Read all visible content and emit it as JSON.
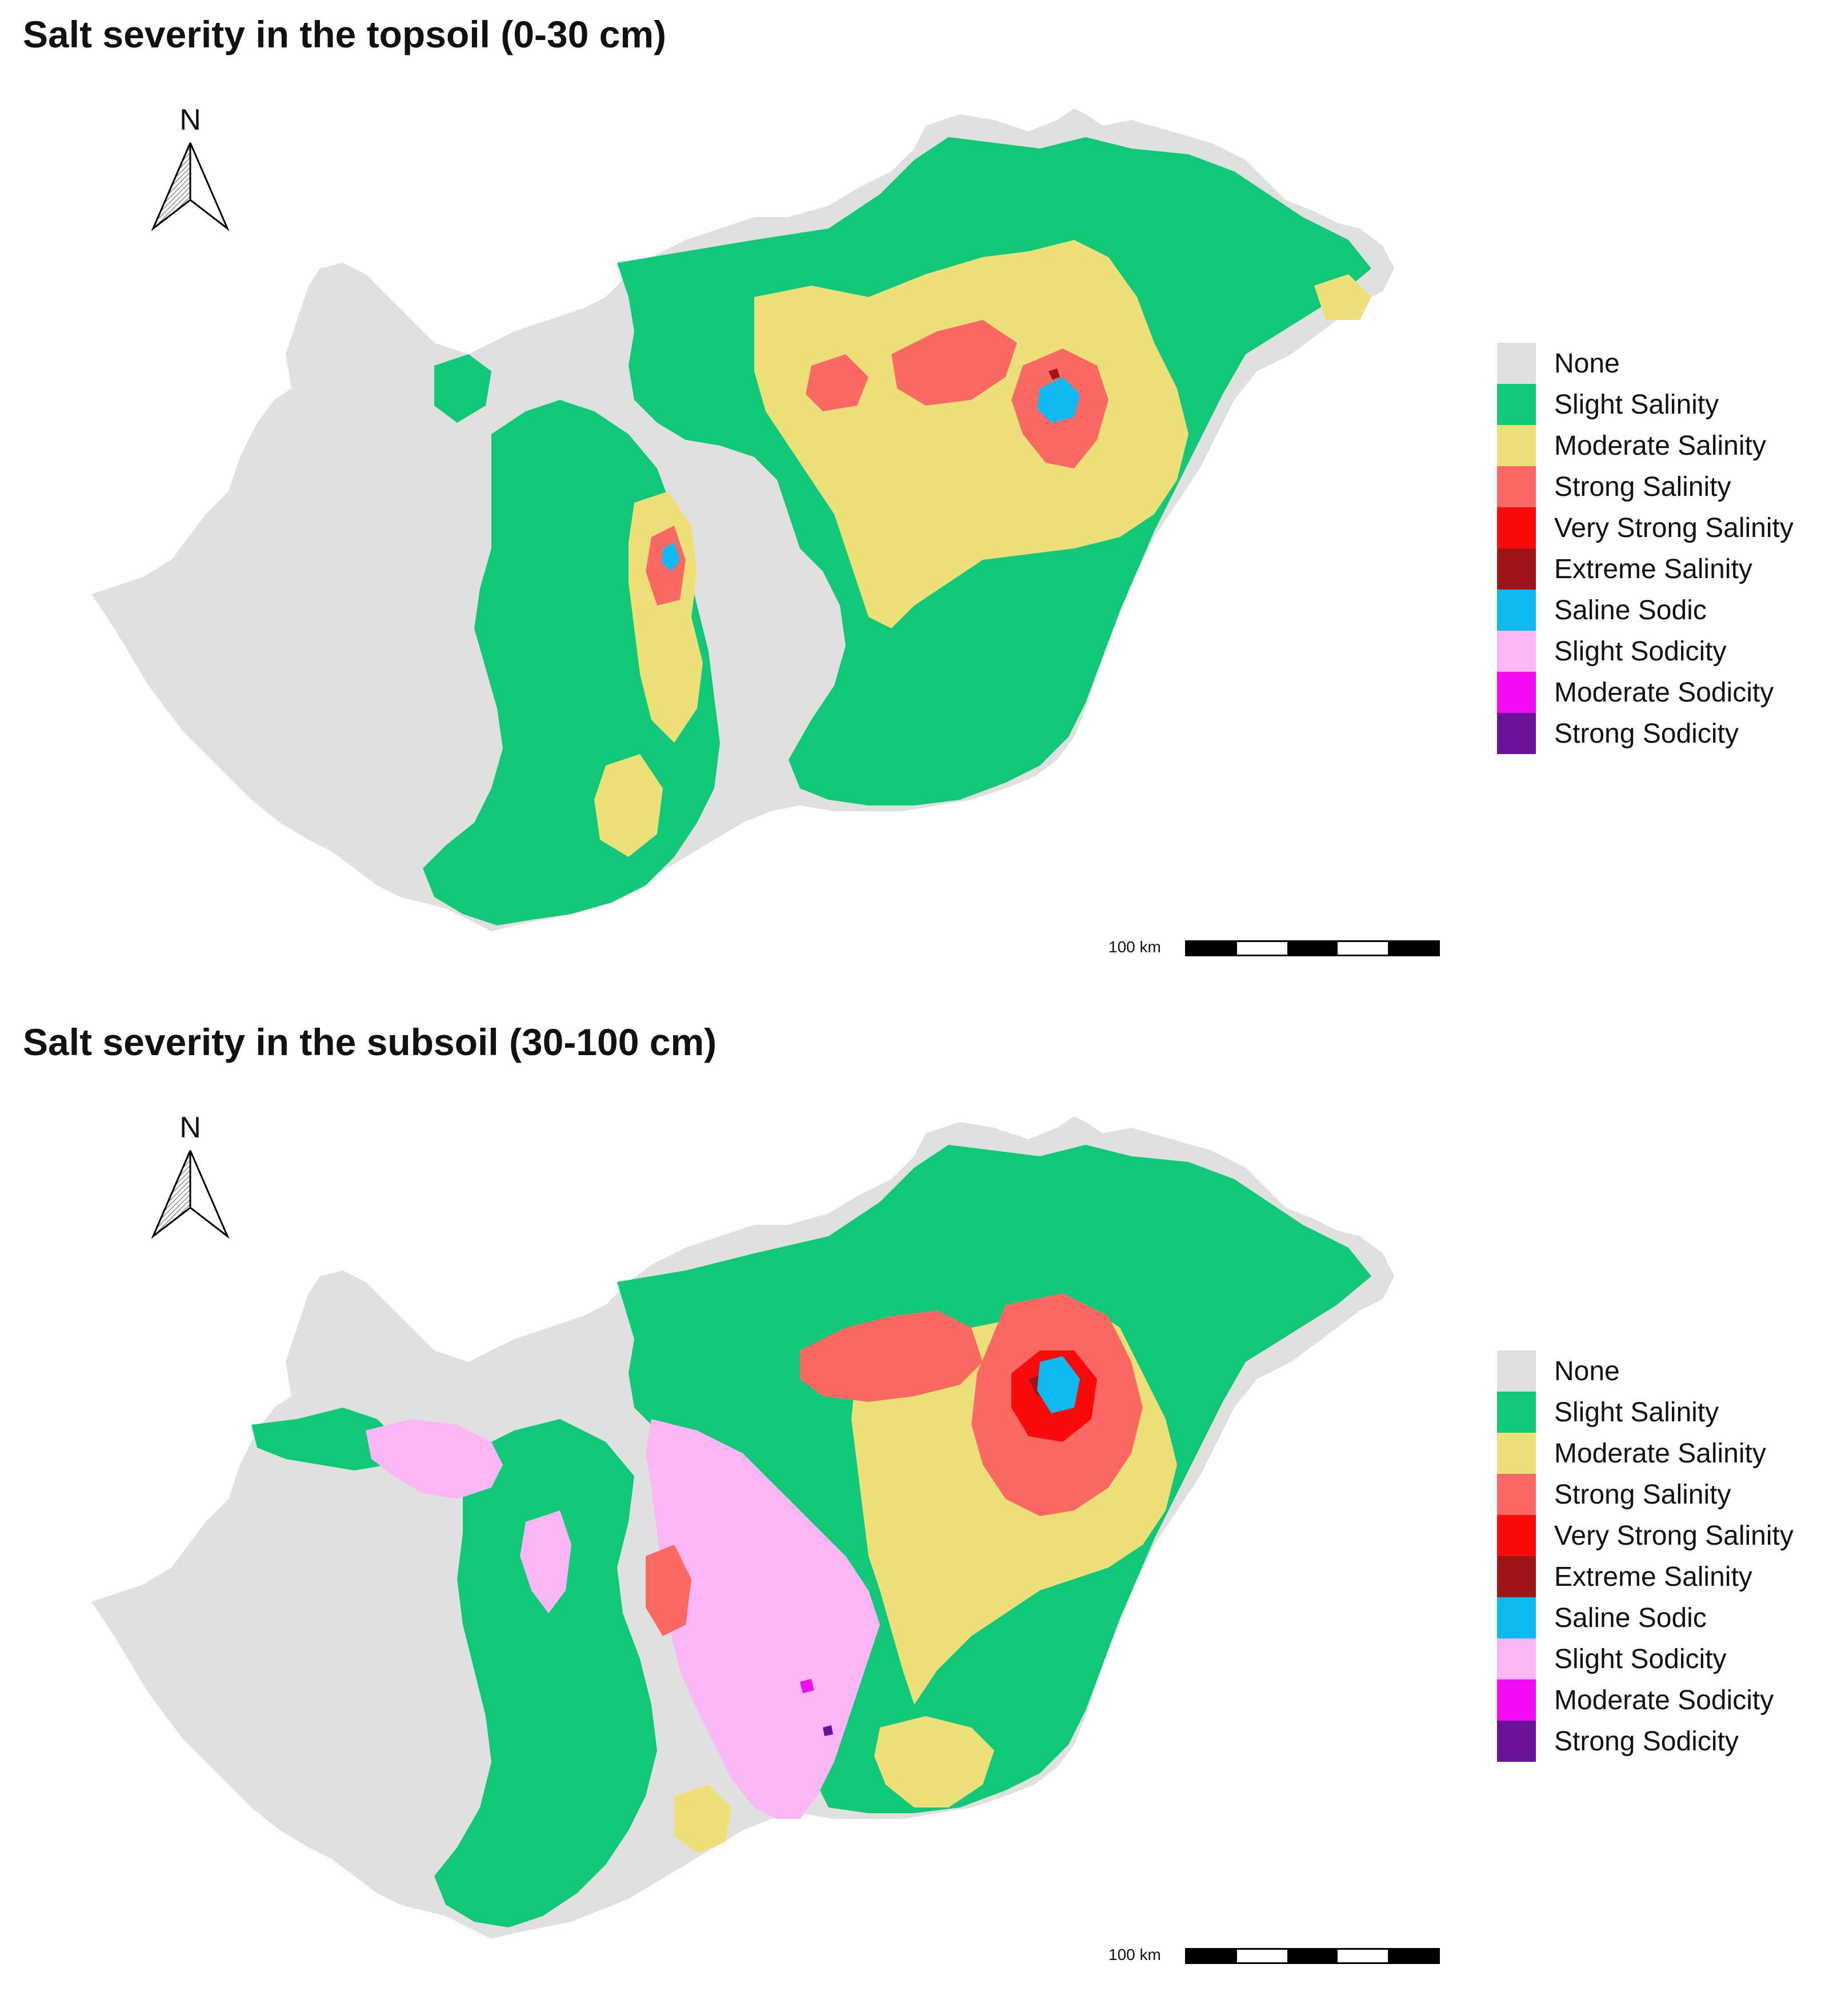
{
  "panels": [
    {
      "id": "topsoil",
      "title": "Salt severity in the topsoil (0-30 cm)",
      "north_label": "N",
      "scale_label": "100 km"
    },
    {
      "id": "subsoil",
      "title": "Salt severity in the subsoil (30-100 cm)",
      "north_label": "N",
      "scale_label": "100 km"
    }
  ],
  "legend": [
    {
      "label": "None",
      "color": "#e0e0e0"
    },
    {
      "label": "Slight Salinity",
      "color": "#10c878"
    },
    {
      "label": "Moderate Salinity",
      "color": "#ede07a"
    },
    {
      "label": "Strong Salinity",
      "color": "#fb6a62"
    },
    {
      "label": "Very Strong Salinity",
      "color": "#fb0a0a"
    },
    {
      "label": "Extreme Salinity",
      "color": "#a01616"
    },
    {
      "label": "Saline Sodic",
      "color": "#10b8f2"
    },
    {
      "label": "Slight Sodicity",
      "color": "#fbb6f6"
    },
    {
      "label": "Moderate Sodicity",
      "color": "#f20cf2"
    },
    {
      "label": "Strong Sodicity",
      "color": "#6a129a"
    }
  ]
}
